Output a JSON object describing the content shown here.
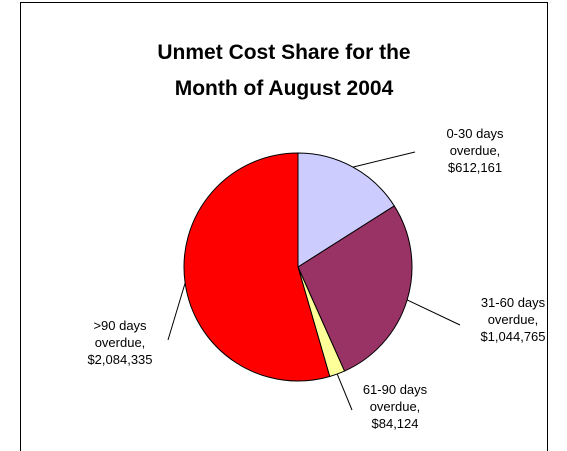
{
  "chart_data": {
    "type": "pie",
    "title": "Unmet Cost Share for the Month of August 2004",
    "categories": [
      "0-30 days overdue,",
      "31-60 days overdue,",
      "61-90 days overdue,",
      ">90 days overdue,"
    ],
    "values": [
      612161,
      1044765,
      84124,
      2084335
    ],
    "value_labels": [
      "$612,161",
      "$1,044,765",
      "$84,124",
      "$2,084,335"
    ],
    "colors": [
      "#ccccff",
      "#993366",
      "#ffff99",
      "#ff0000"
    ]
  }
}
